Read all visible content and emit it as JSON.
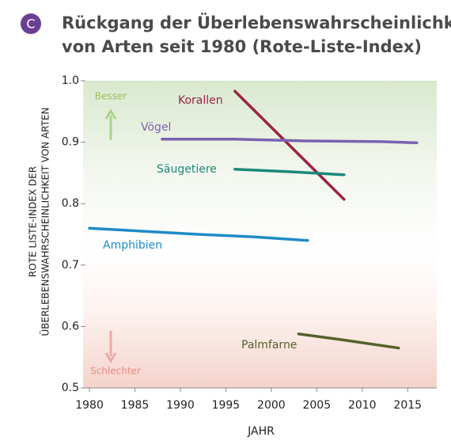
{
  "chart_data": {
    "type": "line",
    "panel_label": "C",
    "title": [
      "Rückgang der Überlebenswahrscheinlichkeit",
      "von Arten seit 1980 (Rote-Liste-Index)"
    ],
    "x_label": "JAHR",
    "y_label": [
      "ROTE LISTE-INDEX DER",
      "ÜBERLEBENSWAHRSCHEINLICHKEIT VON ARTEN"
    ],
    "annotations": {
      "better": "Besser",
      "worse": "Schlechter"
    },
    "xlim": [
      1979.3,
      2018.2
    ],
    "xticks": [
      1980,
      1985,
      1990,
      1995,
      2000,
      2005,
      2010,
      2015
    ],
    "ylim": [
      0.5,
      1.0
    ],
    "yticks": [
      0.5,
      0.6,
      0.7,
      0.8,
      0.9,
      {
        "value": 1.0,
        "label": "1.0"
      }
    ],
    "series": [
      {
        "name": "Korallen",
        "color": "#9b2440",
        "x": [
          1996,
          2008
        ],
        "values": [
          0.983,
          0.807
        ]
      },
      {
        "name": "Vögel",
        "color": "#7a62b0",
        "x": [
          1988,
          1996,
          2004,
          2012,
          2016
        ],
        "values": [
          0.905,
          0.905,
          0.902,
          0.901,
          0.899
        ]
      },
      {
        "name": "Säugetiere",
        "color": "#1b8a78",
        "x": [
          1996,
          2002,
          2008
        ],
        "values": [
          0.856,
          0.852,
          0.847
        ]
      },
      {
        "name": "Amphibien",
        "color": "#1f8bc6",
        "x": [
          1980,
          1986,
          1992,
          1998,
          2004
        ],
        "values": [
          0.76,
          0.755,
          0.75,
          0.746,
          0.74
        ]
      },
      {
        "name": "Palmfarne",
        "color": "#55612a",
        "x": [
          2003,
          2008,
          2014
        ],
        "values": [
          0.588,
          0.578,
          0.565
        ]
      }
    ]
  }
}
